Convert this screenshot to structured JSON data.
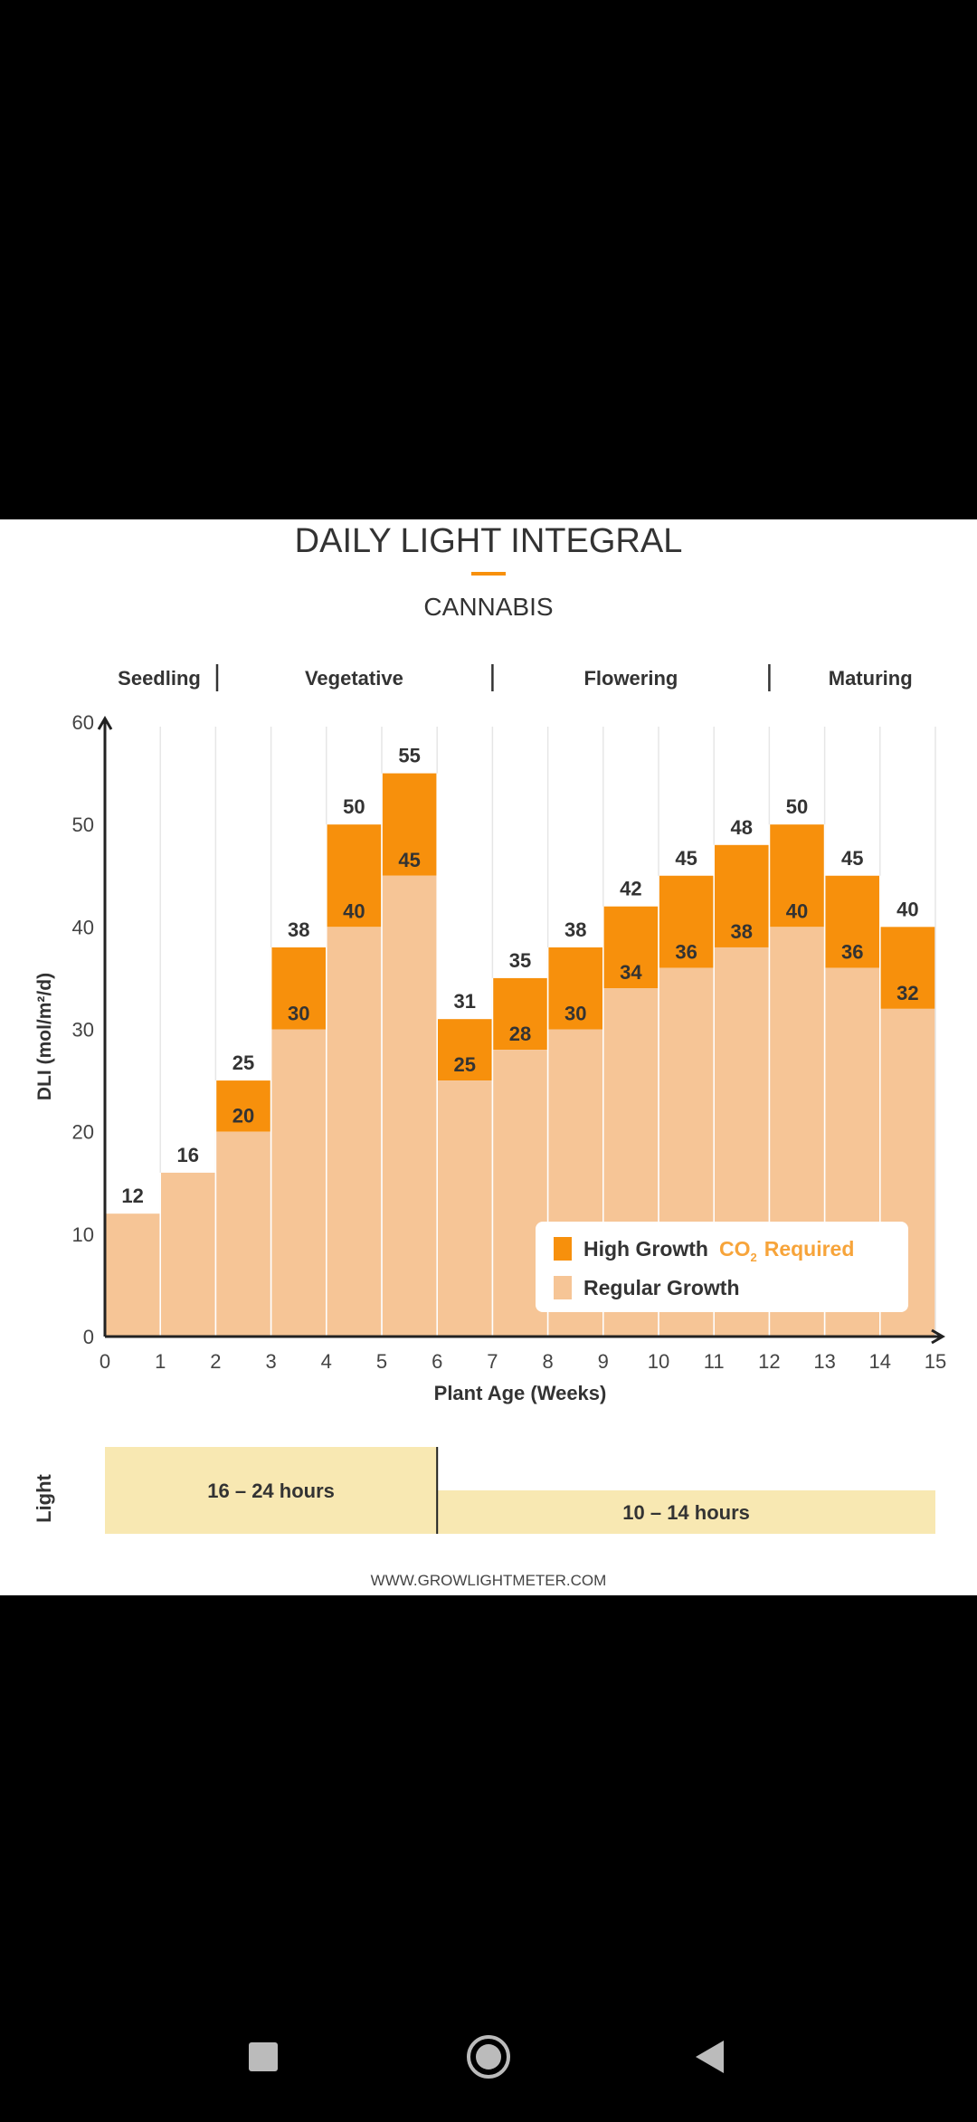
{
  "chart_data": {
    "type": "bar",
    "title": "DAILY LIGHT INTEGRAL",
    "subtitle": "CANNABIS",
    "xlabel": "Plant Age (Weeks)",
    "ylabel": "DLI (mol/m²/d)",
    "ylim": [
      0,
      60
    ],
    "xlim": [
      0,
      15
    ],
    "yticks": [
      "0",
      "10",
      "20",
      "30",
      "40",
      "50",
      "60"
    ],
    "xticks": [
      "0",
      "1",
      "2",
      "3",
      "4",
      "5",
      "6",
      "7",
      "8",
      "9",
      "10",
      "11",
      "12",
      "13",
      "14",
      "15"
    ],
    "grid": true,
    "phases": [
      {
        "label": "Seedling",
        "start": 0,
        "end": 2
      },
      {
        "label": "Vegetative",
        "start": 2,
        "end": 7
      },
      {
        "label": "Flowering",
        "start": 7,
        "end": 12
      },
      {
        "label": "Maturing",
        "start": 12,
        "end": 15
      }
    ],
    "series": [
      {
        "name": "Regular Growth",
        "color": "#F6C596",
        "values": [
          12,
          16,
          20,
          30,
          40,
          45,
          25,
          28,
          30,
          34,
          36,
          38,
          40,
          36,
          32
        ]
      },
      {
        "name": "High Growth",
        "color": "#F7900C",
        "values": [
          12,
          16,
          25,
          38,
          50,
          55,
          31,
          35,
          38,
          42,
          45,
          48,
          50,
          45,
          40
        ]
      }
    ],
    "legend": {
      "placement": "bottom-right",
      "high_label": "High Growth",
      "co2_label": "CO",
      "co2_sub": "2",
      "required_label": "Required",
      "regular_label": "Regular Growth"
    },
    "light": {
      "axis_label": "Light",
      "bands": [
        {
          "label": "16 – 24 hours",
          "start": 0,
          "end": 6
        },
        {
          "label": "10 – 14 hours",
          "start": 6,
          "end": 15
        }
      ]
    },
    "source": "WWW.GROWLIGHTMETER.COM"
  }
}
